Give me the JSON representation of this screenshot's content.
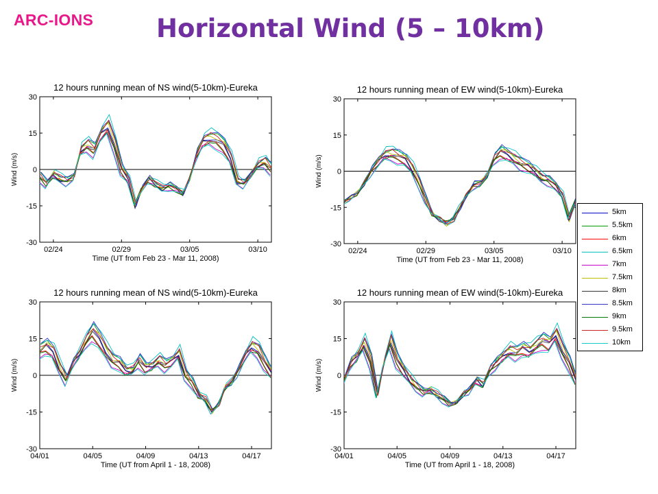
{
  "header": {
    "logo": "ARC-IONS",
    "title": "Horizontal Wind (5 – 10km)"
  },
  "legend": {
    "items": [
      {
        "label": "5km",
        "color": "#0000cc"
      },
      {
        "label": "5.5km",
        "color": "#009900"
      },
      {
        "label": "6km",
        "color": "#ff0000"
      },
      {
        "label": "6.5km",
        "color": "#00bfbf"
      },
      {
        "label": "7km",
        "color": "#cc00cc"
      },
      {
        "label": "7.5km",
        "color": "#bfbf00"
      },
      {
        "label": "8km",
        "color": "#333333"
      },
      {
        "label": "8.5km",
        "color": "#3333cc"
      },
      {
        "label": "9km",
        "color": "#007700"
      },
      {
        "label": "9.5km",
        "color": "#cc2222"
      },
      {
        "label": "10km",
        "color": "#11cccc"
      }
    ]
  },
  "chart_data": [
    {
      "type": "line",
      "title": "12 hours running mean of NS wind(5-10km)-Eureka",
      "xlabel": "Time (UT from Feb 23 - Mar 11, 2008)",
      "ylabel": "Wind (m/s)",
      "xlim": [
        23,
        40
      ],
      "ylim": [
        -30,
        30
      ],
      "xticks": [
        {
          "v": 24,
          "label": "02/24"
        },
        {
          "v": 29,
          "label": "02/29"
        },
        {
          "v": 34,
          "label": "03/05"
        },
        {
          "v": 39,
          "label": "03/10"
        }
      ],
      "yticks": [
        -30,
        -15,
        0,
        15,
        30
      ],
      "base": [
        [
          23,
          -3
        ],
        [
          23.5,
          -6
        ],
        [
          24,
          -2
        ],
        [
          24.5,
          -4
        ],
        [
          25,
          -5
        ],
        [
          25.5,
          -3
        ],
        [
          26,
          8
        ],
        [
          26.5,
          10
        ],
        [
          27,
          8
        ],
        [
          27.5,
          15
        ],
        [
          28,
          18
        ],
        [
          28.5,
          10
        ],
        [
          29,
          0
        ],
        [
          29.5,
          -4
        ],
        [
          30,
          -15
        ],
        [
          30.5,
          -8
        ],
        [
          31,
          -4
        ],
        [
          31.5,
          -6
        ],
        [
          32,
          -8
        ],
        [
          32.5,
          -7
        ],
        [
          33,
          -8
        ],
        [
          33.5,
          -10
        ],
        [
          34,
          -4
        ],
        [
          34.5,
          6
        ],
        [
          35,
          12
        ],
        [
          35.5,
          13
        ],
        [
          36,
          12
        ],
        [
          36.5,
          10
        ],
        [
          37,
          5
        ],
        [
          37.5,
          -5
        ],
        [
          38,
          -6
        ],
        [
          38.5,
          -2
        ],
        [
          39,
          2
        ],
        [
          39.5,
          3
        ],
        [
          40,
          0
        ]
      ]
    },
    {
      "type": "line",
      "title": "12 hours running mean of EW wind(5-10km)-Eureka",
      "xlabel": "Time (UT from Feb 23 - Mar 11, 2008)",
      "ylabel": "Wind (m/s)",
      "xlim": [
        23,
        40
      ],
      "ylim": [
        -30,
        30
      ],
      "xticks": [
        {
          "v": 24,
          "label": "02/24"
        },
        {
          "v": 29,
          "label": "02/29"
        },
        {
          "v": 34,
          "label": "03/05"
        },
        {
          "v": 39,
          "label": "03/10"
        }
      ],
      "yticks": [
        -30,
        -15,
        0,
        15,
        30
      ],
      "base": [
        [
          23,
          -13
        ],
        [
          23.5,
          -11
        ],
        [
          24,
          -9
        ],
        [
          24.5,
          -5
        ],
        [
          25,
          0
        ],
        [
          25.5,
          4
        ],
        [
          26,
          7
        ],
        [
          26.5,
          7
        ],
        [
          27,
          6
        ],
        [
          27.5,
          5
        ],
        [
          28,
          1
        ],
        [
          28.5,
          -5
        ],
        [
          29,
          -12
        ],
        [
          29.5,
          -18
        ],
        [
          30,
          -20
        ],
        [
          30.5,
          -22
        ],
        [
          31,
          -20
        ],
        [
          31.5,
          -15
        ],
        [
          32,
          -10
        ],
        [
          32.5,
          -6
        ],
        [
          33,
          -5
        ],
        [
          33.5,
          -2
        ],
        [
          34,
          5
        ],
        [
          34.5,
          8
        ],
        [
          35,
          7
        ],
        [
          35.5,
          5
        ],
        [
          36,
          3
        ],
        [
          36.5,
          2
        ],
        [
          37,
          0
        ],
        [
          37.5,
          -3
        ],
        [
          38,
          -4
        ],
        [
          38.5,
          -6
        ],
        [
          39,
          -10
        ],
        [
          39.5,
          -20
        ],
        [
          40,
          -12
        ]
      ]
    },
    {
      "type": "line",
      "title": "12 hours running mean of NS wind(5-10km)-Eureka",
      "xlabel": "Time (UT from April 1 - 18, 2008)",
      "ylabel": "Wind (m/s)",
      "xlim": [
        1,
        18.5
      ],
      "ylim": [
        -30,
        30
      ],
      "xticks": [
        {
          "v": 1,
          "label": "04/01"
        },
        {
          "v": 5,
          "label": "04/05"
        },
        {
          "v": 9,
          "label": "04/09"
        },
        {
          "v": 13,
          "label": "04/13"
        },
        {
          "v": 17,
          "label": "04/17"
        }
      ],
      "yticks": [
        -30,
        -15,
        0,
        15,
        30
      ],
      "base": [
        [
          1,
          10
        ],
        [
          1.5,
          12
        ],
        [
          2,
          10
        ],
        [
          2.5,
          3
        ],
        [
          3,
          -2
        ],
        [
          3.5,
          5
        ],
        [
          4,
          9
        ],
        [
          4.5,
          14
        ],
        [
          5,
          18
        ],
        [
          5.5,
          15
        ],
        [
          6,
          10
        ],
        [
          6.5,
          6
        ],
        [
          7,
          5
        ],
        [
          7.5,
          2
        ],
        [
          8,
          2
        ],
        [
          8.5,
          6
        ],
        [
          9,
          3
        ],
        [
          9.5,
          4
        ],
        [
          10,
          6
        ],
        [
          10.5,
          4
        ],
        [
          11,
          6
        ],
        [
          11.5,
          9
        ],
        [
          12,
          0
        ],
        [
          12.5,
          -3
        ],
        [
          13,
          -8
        ],
        [
          13.5,
          -10
        ],
        [
          14,
          -15
        ],
        [
          14.5,
          -12
        ],
        [
          15,
          -5
        ],
        [
          15.5,
          -3
        ],
        [
          16,
          2
        ],
        [
          16.5,
          8
        ],
        [
          17,
          12
        ],
        [
          17.5,
          10
        ],
        [
          18,
          5
        ],
        [
          18.5,
          1
        ]
      ]
    },
    {
      "type": "line",
      "title": "12 hours running mean of EW wind(5-10km)-Eureka",
      "xlabel": "Time (UT from April 1 - 18, 2008)",
      "ylabel": "Wind (m/s)",
      "xlim": [
        1,
        18.5
      ],
      "ylim": [
        -30,
        30
      ],
      "xticks": [
        {
          "v": 1,
          "label": "04/01"
        },
        {
          "v": 5,
          "label": "04/05"
        },
        {
          "v": 9,
          "label": "04/09"
        },
        {
          "v": 13,
          "label": "04/13"
        },
        {
          "v": 17,
          "label": "04/17"
        }
      ],
      "yticks": [
        -30,
        -15,
        0,
        15,
        30
      ],
      "base": [
        [
          1,
          -2
        ],
        [
          1.5,
          5
        ],
        [
          2,
          8
        ],
        [
          2.5,
          13
        ],
        [
          3,
          6
        ],
        [
          3.5,
          -8
        ],
        [
          4,
          5
        ],
        [
          4.5,
          14
        ],
        [
          5,
          6
        ],
        [
          5.5,
          2
        ],
        [
          6,
          -2
        ],
        [
          6.5,
          -5
        ],
        [
          7,
          -7
        ],
        [
          7.5,
          -6
        ],
        [
          8,
          -8
        ],
        [
          8.5,
          -10
        ],
        [
          9,
          -12
        ],
        [
          9.5,
          -11
        ],
        [
          10,
          -8
        ],
        [
          10.5,
          -6
        ],
        [
          11,
          -2
        ],
        [
          11.5,
          -4
        ],
        [
          12,
          2
        ],
        [
          12.5,
          5
        ],
        [
          13,
          8
        ],
        [
          13.5,
          10
        ],
        [
          14,
          9
        ],
        [
          14.5,
          11
        ],
        [
          15,
          10
        ],
        [
          15.5,
          12
        ],
        [
          16,
          14
        ],
        [
          16.5,
          13
        ],
        [
          17,
          17
        ],
        [
          17.5,
          10
        ],
        [
          18,
          5
        ],
        [
          18.5,
          -2
        ]
      ]
    }
  ]
}
